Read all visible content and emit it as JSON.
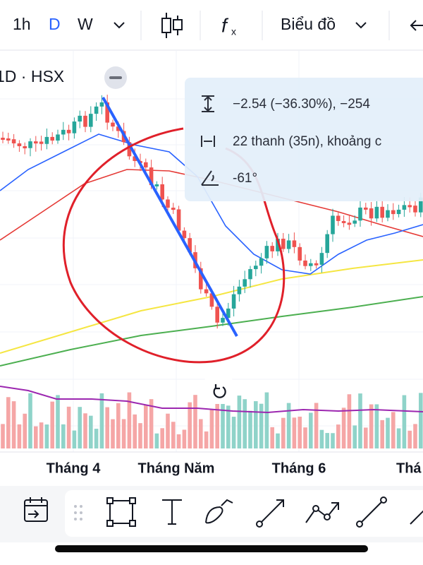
{
  "toolbar": {
    "intervals": [
      "1h",
      "D",
      "W"
    ],
    "chart_type": "Biểu đồ"
  },
  "chart": {
    "symbol": "1D · HSX",
    "measure": {
      "price_change": "−2.54 (−36.30%), −254",
      "bars": "22 thanh (35n), khoảng c",
      "angle": "-61°"
    },
    "x_labels": [
      "Tháng 4",
      "Tháng Năm",
      "Tháng 6",
      "Thá"
    ]
  }
}
